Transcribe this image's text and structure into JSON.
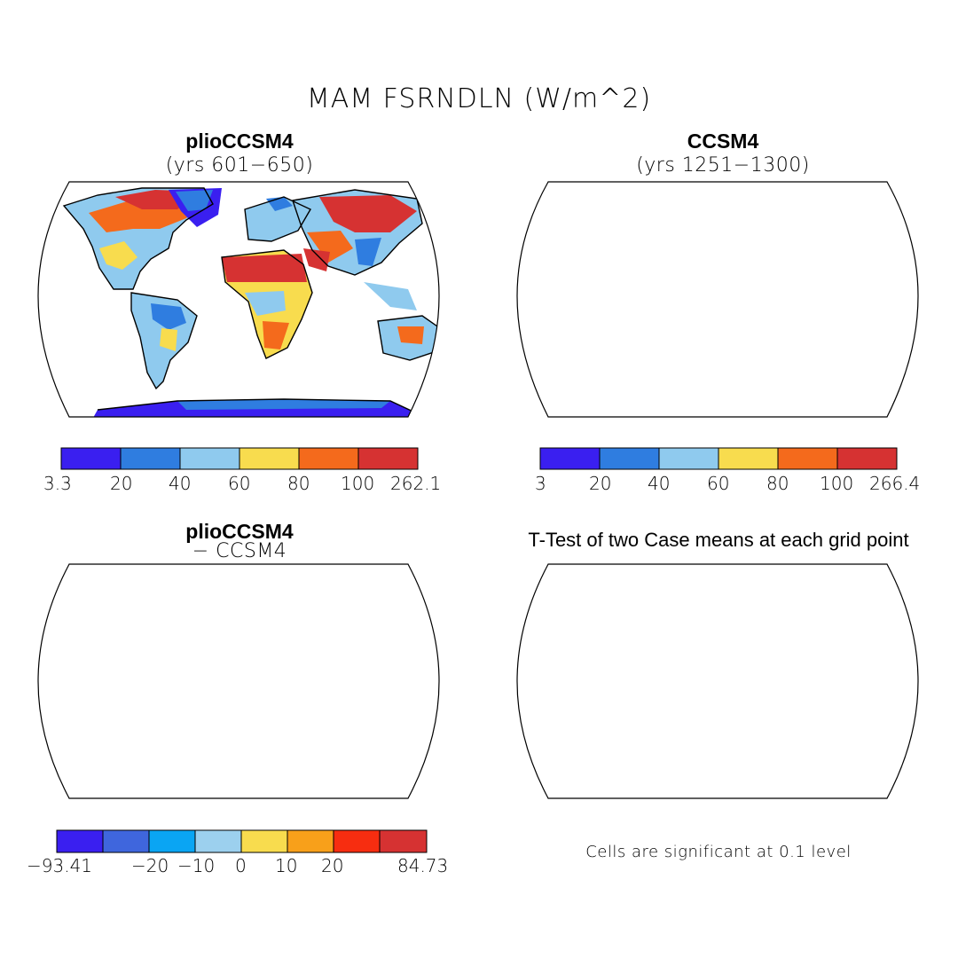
{
  "title": "MAM FSRNDLN (W/m^2)",
  "colors": {
    "deep_blue": "#3a1ff0",
    "blue": "#2f7de0",
    "light_blue": "#8fcaee",
    "yellow": "#f8dc4e",
    "orange": "#f46a1c",
    "red": "#d63232",
    "ttest_red": "#ee1010",
    "diff_blue2": "#3f66dd",
    "diff_cyan": "#0aa5f3",
    "diff_light": "#9cd0ee",
    "diff_orange": "#f8a01a",
    "diff_red1": "#f72d10",
    "diff_red2": "#d63232"
  },
  "panels": {
    "top_left": {
      "title": "plioCCSM4",
      "subtitle": "(yrs 601−650)",
      "colorbar_labels": [
        "3.3",
        "20",
        "40",
        "60",
        "80",
        "100",
        "262.1"
      ]
    },
    "top_right": {
      "title": "CCSM4",
      "subtitle": "(yrs 1251−1300)",
      "colorbar_labels": [
        "3",
        "20",
        "40",
        "60",
        "80",
        "100",
        "266.4"
      ]
    },
    "bottom_left": {
      "title": "plioCCSM4",
      "subtitle": "− CCSM4",
      "colorbar_labels": [
        "−93.41",
        "−20",
        "−10",
        "0",
        "10",
        "20",
        "84.73"
      ]
    },
    "bottom_right": {
      "title": "T-Test of two Case means at each grid point",
      "note": "Cells are significant at 0.1 level"
    }
  }
}
